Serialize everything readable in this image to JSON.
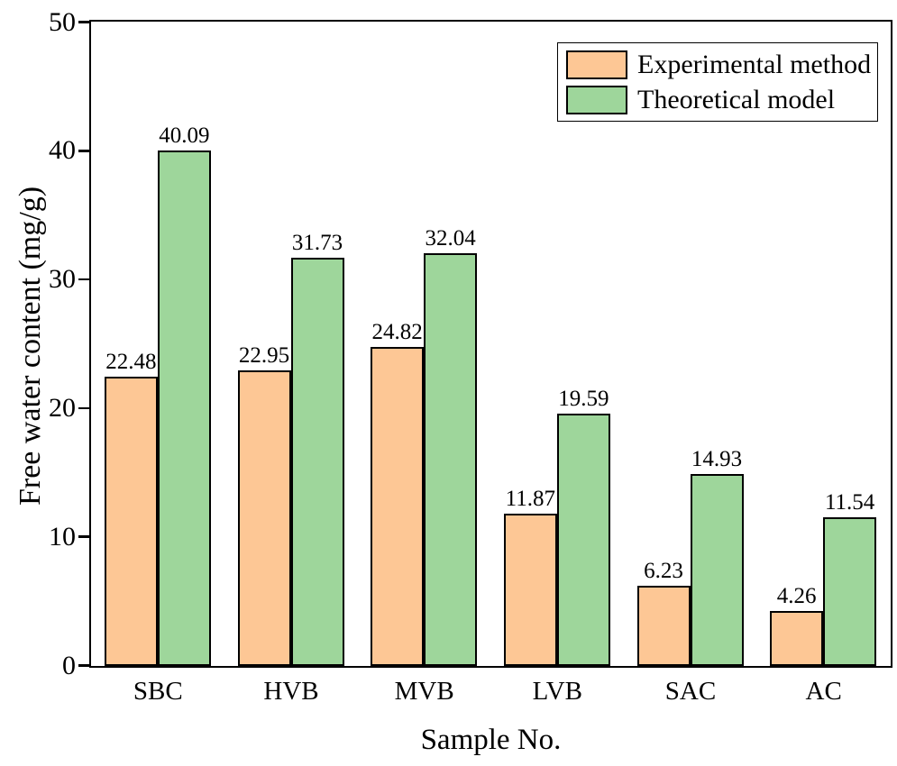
{
  "chart_data": {
    "type": "bar",
    "categories": [
      "SBC",
      "HVB",
      "MVB",
      "LVB",
      "SAC",
      "AC"
    ],
    "series": [
      {
        "name": "Experimental method",
        "color": "#FDC795",
        "values": [
          22.48,
          22.95,
          24.82,
          11.87,
          6.23,
          4.26
        ]
      },
      {
        "name": "Theoretical model",
        "color": "#9ED69B",
        "values": [
          40.09,
          31.73,
          32.04,
          19.59,
          14.93,
          11.54
        ]
      }
    ],
    "value_labels": [
      [
        "22.48",
        "22.95",
        "24.82",
        "11.87",
        "6.23",
        "4.26"
      ],
      [
        "40.09",
        "31.73",
        "32.04",
        "19.59",
        "14.93",
        "11.54"
      ]
    ],
    "xlabel": "Sample No.",
    "ylabel": "Free water content (mg/g)",
    "ylim": [
      0,
      50
    ],
    "yticks": [
      0,
      10,
      20,
      30,
      40,
      50
    ],
    "grid": false,
    "legend_position": "top-right",
    "bar_edge_color": "#000000",
    "axis_color": "#000000",
    "background_color": "#ffffff"
  }
}
